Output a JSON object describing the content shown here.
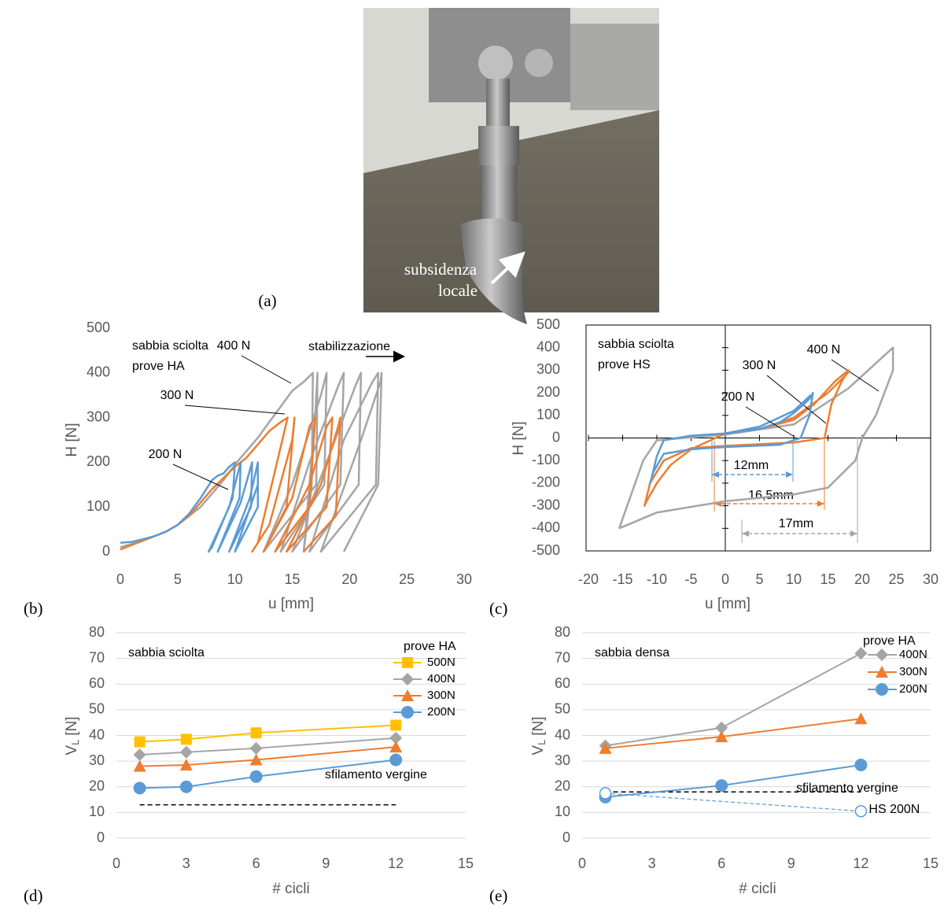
{
  "photo": {
    "label": "(a)",
    "annotation": [
      "subsidenza",
      "locale"
    ]
  },
  "chart_data": [
    {
      "type": "line",
      "panel_label": "(b)",
      "xlabel": "u [mm]",
      "ylabel": "H [N]",
      "xlim": [
        0,
        30
      ],
      "xticks": [
        0,
        5,
        10,
        15,
        20,
        25,
        30
      ],
      "ylim": [
        0,
        500
      ],
      "yticks": [
        0,
        100,
        200,
        300,
        400,
        500
      ],
      "notes": [
        "sabbia sciolta",
        "prove HA"
      ],
      "arrow_note": "stabilizzazione",
      "series": [
        {
          "name": "400 N",
          "color": "#a5a5a5",
          "x": [
            0,
            2,
            4,
            5,
            6,
            7,
            8,
            9,
            10,
            11,
            12,
            13,
            14,
            15,
            16,
            16.8,
            16.7,
            16,
            17,
            17.2,
            17.1,
            12.5,
            15,
            17.5,
            18,
            17.8,
            14,
            16.5,
            19,
            19.5,
            19.2,
            15,
            18,
            20.5,
            21,
            20.8,
            16.5,
            19.5,
            22,
            22.5,
            22.3,
            17.5,
            21,
            22.7,
            22.8,
            22.5,
            19.5
          ],
          "values": [
            10,
            25,
            45,
            60,
            80,
            100,
            130,
            160,
            195,
            225,
            255,
            290,
            325,
            360,
            380,
            400,
            150,
            0,
            300,
            400,
            150,
            0,
            150,
            350,
            400,
            150,
            0,
            200,
            370,
            400,
            150,
            0,
            200,
            370,
            400,
            150,
            0,
            250,
            380,
            400,
            150,
            0,
            250,
            380,
            400,
            150,
            0
          ]
        },
        {
          "name": "300 N",
          "color": "#ed7d31",
          "x": [
            0,
            1,
            2,
            3,
            4,
            5,
            6,
            7,
            8,
            9,
            10,
            11,
            12,
            13,
            14,
            14.6,
            12,
            11.5,
            13,
            15,
            15.2,
            14.5,
            12.5,
            15,
            16.5,
            17,
            16.5,
            13.5,
            16.5,
            18,
            18.5,
            18,
            14.5,
            17.5,
            19,
            19.2,
            18.8,
            16
          ],
          "values": [
            5,
            15,
            25,
            35,
            45,
            60,
            80,
            110,
            140,
            165,
            190,
            210,
            240,
            270,
            290,
            300,
            20,
            0,
            60,
            250,
            300,
            100,
            0,
            120,
            280,
            300,
            100,
            0,
            150,
            280,
            300,
            100,
            0,
            150,
            280,
            300,
            80,
            0
          ]
        },
        {
          "name": "200 N",
          "color": "#5b9bd5",
          "x": [
            0,
            1,
            2,
            3,
            4,
            5,
            6,
            7,
            8,
            8.5,
            9,
            9.5,
            10,
            9.8,
            8,
            7.7,
            9.5,
            10.5,
            10.4,
            8.5,
            10.5,
            11.5,
            11.4,
            9.5,
            11.3,
            12,
            12,
            10,
            12
          ],
          "values": [
            20,
            22,
            28,
            35,
            45,
            60,
            85,
            120,
            160,
            170,
            175,
            190,
            200,
            120,
            10,
            0,
            100,
            200,
            120,
            0,
            110,
            200,
            100,
            0,
            120,
            200,
            100,
            0,
            150
          ]
        }
      ]
    },
    {
      "type": "line",
      "panel_label": "(c)",
      "xlabel": "u [mm]",
      "ylabel": "H [N]",
      "xlim": [
        -20,
        30
      ],
      "xticks": [
        -20,
        -15,
        -10,
        -5,
        0,
        5,
        10,
        15,
        20,
        25,
        30
      ],
      "ylim": [
        -500,
        500
      ],
      "yticks": [
        -500,
        -400,
        -300,
        -200,
        -100,
        0,
        100,
        200,
        300,
        400,
        500
      ],
      "frame": true,
      "axes_at_zero": true,
      "notes": [
        "sabbia sciolta",
        "prove HS"
      ],
      "dimensions": [
        {
          "label": "12mm",
          "color": "#5b9bd5"
        },
        {
          "label": "16,5mm",
          "color": "#ed7d31"
        },
        {
          "label": "17mm",
          "color": "#a5a5a5"
        }
      ],
      "series": [
        {
          "name": "400 N",
          "color": "#a5a5a5",
          "x": [
            -15.5,
            -12,
            -10,
            0,
            10,
            18,
            24.5,
            24.5,
            22,
            20,
            19,
            15,
            10,
            0,
            -10,
            -15.5
          ],
          "values": [
            -400,
            -100,
            -10,
            15,
            60,
            220,
            400,
            300,
            100,
            0,
            -100,
            -220,
            -250,
            -280,
            -330,
            -400
          ]
        },
        {
          "name": "300 N",
          "color": "#ed7d31",
          "x": [
            0,
            5,
            10,
            13,
            16,
            18,
            17,
            15.5,
            14.5,
            10,
            0,
            -5,
            -9,
            -11,
            -11.8,
            -11.5,
            -10,
            -8,
            -5,
            0,
            5,
            10,
            15,
            18
          ],
          "values": [
            20,
            40,
            80,
            150,
            250,
            300,
            250,
            150,
            0,
            -20,
            -35,
            -45,
            -100,
            -200,
            -300,
            -280,
            -200,
            -120,
            -50,
            20,
            40,
            90,
            200,
            290
          ]
        },
        {
          "name": "200 N",
          "color": "#5b9bd5",
          "x": [
            0,
            5,
            8,
            10,
            11.5,
            12.5,
            12.8,
            12.3,
            11,
            8,
            0,
            -5,
            -9,
            -10.5,
            -11,
            -10.8,
            -10,
            -9,
            -5,
            0,
            5,
            10,
            12.5
          ],
          "values": [
            20,
            40,
            70,
            110,
            150,
            180,
            200,
            100,
            0,
            -30,
            -40,
            -50,
            -70,
            -150,
            -200,
            -180,
            -80,
            -10,
            10,
            20,
            50,
            120,
            190
          ]
        }
      ]
    },
    {
      "type": "line",
      "panel_label": "(d)",
      "xlabel": "# cicli",
      "ylabel": {
        "text": "V",
        "subscript": "L",
        "unit": "[N]"
      },
      "xlim": [
        0,
        15
      ],
      "xticks": [
        0,
        3,
        6,
        9,
        12,
        15
      ],
      "ylim": [
        0,
        80
      ],
      "yticks": [
        0,
        10,
        20,
        30,
        40,
        50,
        60,
        70,
        80
      ],
      "grid": true,
      "notes": [
        "sabbia sciolta"
      ],
      "legend_title": "prove HA",
      "reference": {
        "value": 13,
        "x": [
          1,
          12
        ],
        "label": "sfilamento vergine"
      },
      "series": [
        {
          "name": "500N",
          "color": "#ffc000",
          "marker": "square",
          "x": [
            1,
            3,
            6,
            12
          ],
          "values": [
            37.5,
            38.5,
            41,
            44
          ]
        },
        {
          "name": "400N",
          "color": "#a5a5a5",
          "marker": "diamond",
          "x": [
            1,
            3,
            6,
            12
          ],
          "values": [
            32.5,
            33.5,
            35,
            39
          ]
        },
        {
          "name": "300N",
          "color": "#ed7d31",
          "marker": "triangle",
          "x": [
            1,
            3,
            6,
            12
          ],
          "values": [
            28,
            28.5,
            30.5,
            35.5
          ]
        },
        {
          "name": "200N",
          "color": "#5b9bd5",
          "marker": "circle",
          "x": [
            1,
            3,
            6,
            12
          ],
          "values": [
            19.5,
            20,
            24,
            30.5
          ]
        }
      ]
    },
    {
      "type": "line",
      "panel_label": "(e)",
      "xlabel": "# cicli",
      "ylabel": {
        "text": "V",
        "subscript": "L",
        "unit": "[N]"
      },
      "xlim": [
        0,
        15
      ],
      "xticks": [
        0,
        3,
        6,
        9,
        12,
        15
      ],
      "ylim": [
        0,
        80
      ],
      "yticks": [
        0,
        10,
        20,
        30,
        40,
        50,
        60,
        70,
        80
      ],
      "grid": true,
      "notes": [
        "sabbia densa"
      ],
      "legend_title": "prove HA",
      "reference": {
        "value": 18,
        "x": [
          1,
          12
        ],
        "label": "sfilamento vergine"
      },
      "series": [
        {
          "name": "400N",
          "color": "#a5a5a5",
          "marker": "diamond",
          "x": [
            1,
            6,
            12
          ],
          "values": [
            36,
            43,
            72
          ]
        },
        {
          "name": "300N",
          "color": "#ed7d31",
          "marker": "triangle",
          "x": [
            1,
            6,
            12
          ],
          "values": [
            35,
            39.5,
            46.5
          ]
        },
        {
          "name": "200N",
          "color": "#5b9bd5",
          "marker": "circle",
          "x": [
            1,
            6,
            12
          ],
          "values": [
            16,
            20.5,
            28.5
          ]
        },
        {
          "name": "HS 200N",
          "color": "#5b9bd5",
          "marker": "circle-open",
          "dashed": true,
          "label_at_end": true,
          "x": [
            1,
            12
          ],
          "values": [
            17.5,
            10.5
          ]
        }
      ]
    }
  ]
}
